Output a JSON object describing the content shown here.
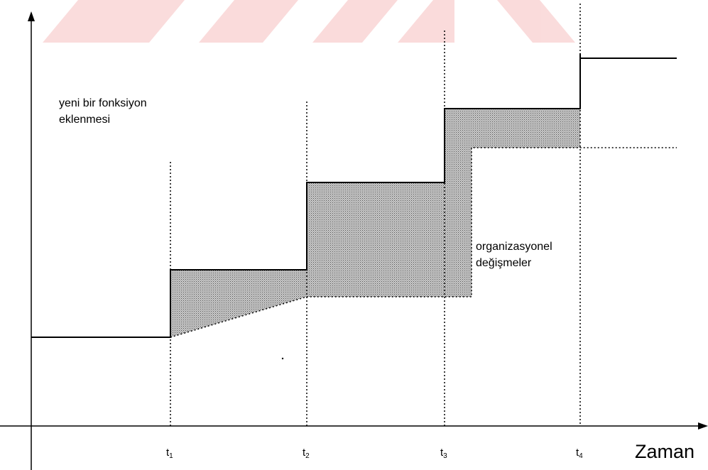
{
  "labels": {
    "new_function": [
      "yeni bir fonksiyon",
      "eklenmesi"
    ],
    "org_change": [
      "organizasyonel",
      "değişmeler"
    ]
  },
  "ticks": [
    {
      "base": "t",
      "sub": "1"
    },
    {
      "base": "t",
      "sub": "2"
    },
    {
      "base": "t",
      "sub": "3"
    },
    {
      "base": "t",
      "sub": "4"
    }
  ],
  "axis_title": "Zaman"
}
